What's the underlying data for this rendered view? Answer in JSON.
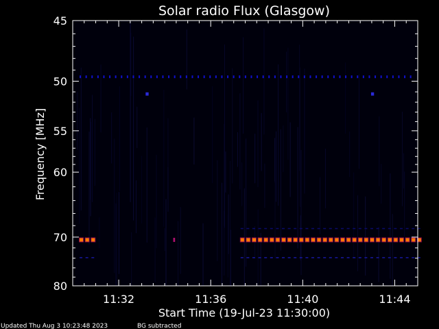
{
  "chart_data": {
    "type": "heatmap",
    "title": "Solar radio Flux (Glasgow)",
    "xlabel": "Start Time (19-Jul-23 11:30:00)",
    "ylabel": "Frequency [MHz]",
    "x_ticks": [
      "11:32",
      "11:36",
      "11:40",
      "11:44"
    ],
    "x_tick_minutes": [
      2,
      6,
      10,
      14
    ],
    "x_range_minutes": [
      0,
      15
    ],
    "y_ticks": [
      "45",
      "50",
      "55",
      "60",
      "70",
      "80"
    ],
    "y_tick_values": [
      45,
      50,
      55,
      60,
      70,
      80
    ],
    "y_range": [
      45,
      80
    ],
    "y_scale": "reciprocal",
    "grid": false,
    "features": [
      {
        "freq": 49.6,
        "t_start": 0.3,
        "t_end": 14.9,
        "intensity": "low",
        "pattern": "dashed",
        "color": "#1010c8"
      },
      {
        "freq": 51.2,
        "t_start": 3.2,
        "t_end": 3.3,
        "intensity": "low",
        "pattern": "dot",
        "color": "#2a2ad8"
      },
      {
        "freq": 51.2,
        "t_start": 13.0,
        "t_end": 13.1,
        "intensity": "low",
        "pattern": "dot",
        "color": "#2a2ad8"
      },
      {
        "freq": 68.5,
        "t_start": 7.3,
        "t_end": 15.0,
        "intensity": "very-low",
        "pattern": "dashed",
        "color": "#0a0a6a"
      },
      {
        "freq": 70.5,
        "t_start": 0.3,
        "t_end": 1.0,
        "intensity": "high",
        "pattern": "dashed",
        "color": "#ff7a00"
      },
      {
        "freq": 70.5,
        "t_start": 7.3,
        "t_end": 15.0,
        "intensity": "high",
        "pattern": "dashed",
        "color": "#ff7a00"
      },
      {
        "freq": 70.5,
        "t_start": 4.4,
        "t_end": 4.45,
        "intensity": "medium",
        "pattern": "dot",
        "color": "#b01070"
      },
      {
        "freq": 73.9,
        "t_start": 0.3,
        "t_end": 1.0,
        "intensity": "very-low",
        "pattern": "dashed",
        "color": "#1818a0"
      },
      {
        "freq": 73.9,
        "t_start": 7.3,
        "t_end": 15.0,
        "intensity": "very-low",
        "pattern": "dashed",
        "color": "#1818a0"
      }
    ]
  },
  "footer": {
    "updated": "Updated Thu Aug  3 10:23:48 2023",
    "note": "BG subtracted"
  }
}
